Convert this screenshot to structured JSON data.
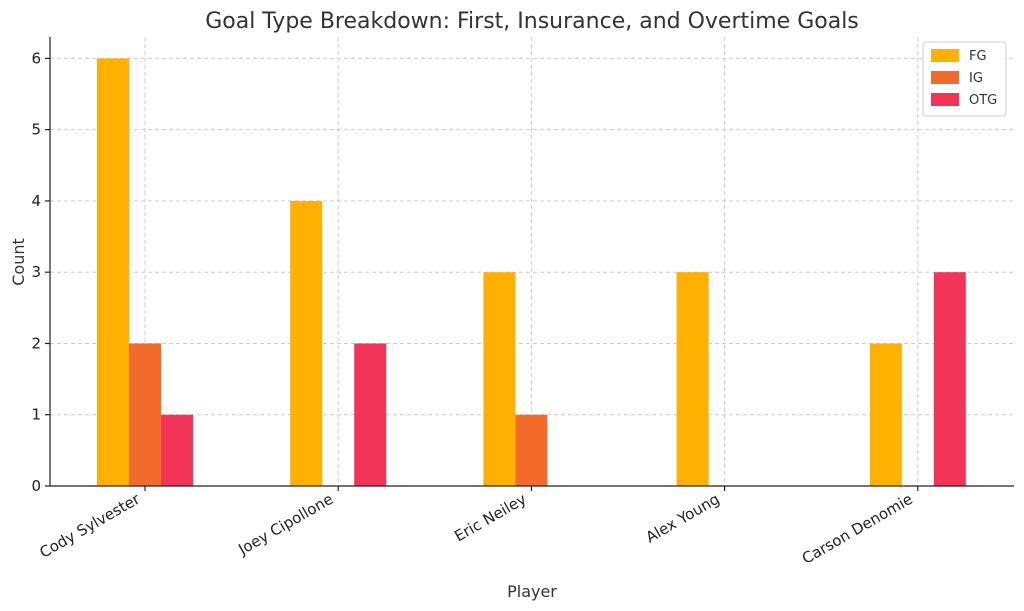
{
  "chart_data": {
    "type": "bar",
    "title": "Goal Type Breakdown: First, Insurance, and Overtime Goals",
    "xlabel": "Player",
    "ylabel": "Count",
    "categories": [
      "Cody Sylvester",
      "Joey Cipollone",
      "Eric Neiley",
      "Alex Young",
      "Carson Denomie"
    ],
    "series": [
      {
        "name": "FG",
        "color": "#ffb000",
        "values": [
          6,
          4,
          3,
          3,
          2
        ]
      },
      {
        "name": "IG",
        "color": "#f26b2a",
        "values": [
          2,
          0,
          1,
          0,
          0
        ]
      },
      {
        "name": "OTG",
        "color": "#f23458",
        "values": [
          1,
          2,
          0,
          0,
          3
        ]
      }
    ],
    "ylim": [
      0,
      6.3
    ],
    "yticks": [
      0,
      1,
      2,
      3,
      4,
      5,
      6
    ],
    "grid": true,
    "legend_position": "top-right"
  }
}
